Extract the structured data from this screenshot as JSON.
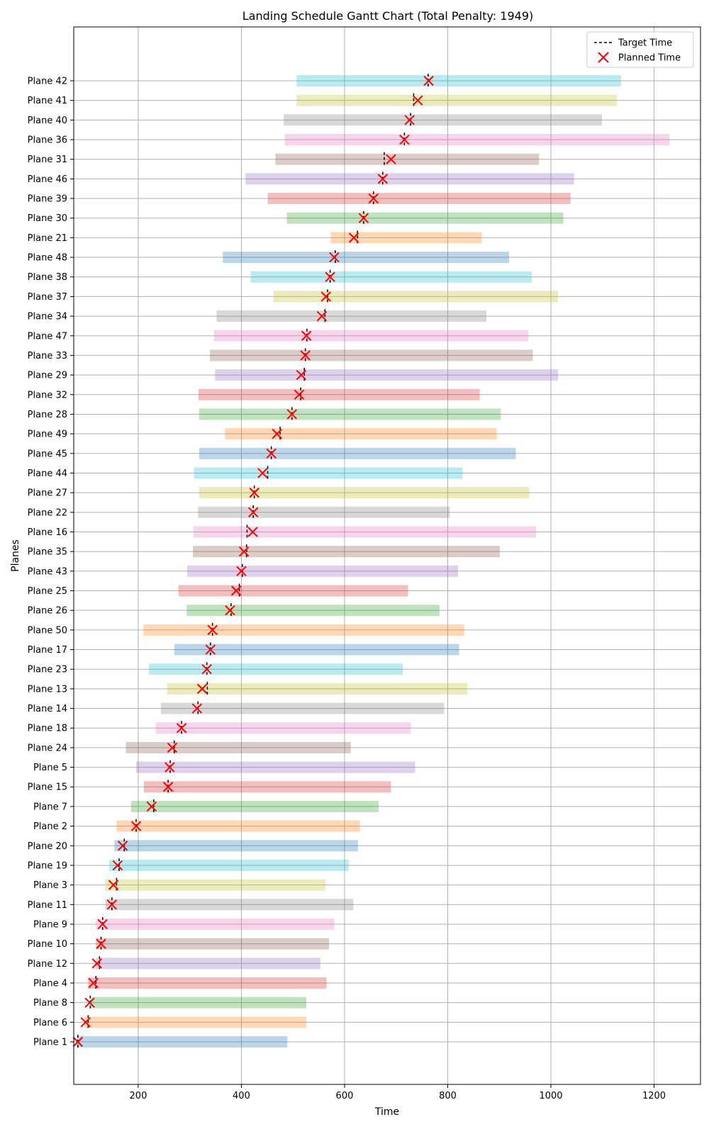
{
  "chart_data": {
    "type": "gantt",
    "title": "Landing Schedule Gantt Chart (Total Penalty: 1949)",
    "xlabel": "Time",
    "ylabel": "Planes",
    "xlim": [
      75,
      1290
    ],
    "xticks": [
      200,
      400,
      600,
      800,
      1000,
      1200
    ],
    "grid": true,
    "legend_placement": "top-right",
    "legend": {
      "target": "Target Time",
      "planned": "Planned Time"
    },
    "colors": [
      "#1f77b4",
      "#ff7f0e",
      "#2ca02c",
      "#d62728",
      "#9467bd",
      "#8c564b",
      "#e377c2",
      "#7f7f7f",
      "#bcbd22",
      "#17becf"
    ],
    "marker_color": "#ff0000",
    "planes": [
      {
        "name": "Plane 1",
        "start": 81,
        "end": 489,
        "target": 83,
        "planned": 83
      },
      {
        "name": "Plane 6",
        "start": 96,
        "end": 526,
        "target": 103,
        "planned": 98
      },
      {
        "name": "Plane 8",
        "start": 107,
        "end": 526,
        "target": 107,
        "planned": 106
      },
      {
        "name": "Plane 4",
        "start": 103,
        "end": 565,
        "target": 118,
        "planned": 113
      },
      {
        "name": "Plane 12",
        "start": 118,
        "end": 553,
        "target": 125,
        "planned": 120
      },
      {
        "name": "Plane 10",
        "start": 118,
        "end": 570,
        "target": 128,
        "planned": 128
      },
      {
        "name": "Plane 9",
        "start": 118,
        "end": 580,
        "target": 131,
        "planned": 131
      },
      {
        "name": "Plane 11",
        "start": 136,
        "end": 617,
        "target": 149,
        "planned": 149
      },
      {
        "name": "Plane 3",
        "start": 136,
        "end": 563,
        "target": 158,
        "planned": 152
      },
      {
        "name": "Plane 19",
        "start": 144,
        "end": 608,
        "target": 163,
        "planned": 160
      },
      {
        "name": "Plane 20",
        "start": 154,
        "end": 626,
        "target": 173,
        "planned": 170
      },
      {
        "name": "Plane 2",
        "start": 158,
        "end": 630,
        "target": 196,
        "planned": 196
      },
      {
        "name": "Plane 7",
        "start": 186,
        "end": 666,
        "target": 230,
        "planned": 226
      },
      {
        "name": "Plane 15",
        "start": 211,
        "end": 690,
        "target": 258,
        "planned": 258
      },
      {
        "name": "Plane 5",
        "start": 196,
        "end": 737,
        "target": 262,
        "planned": 261
      },
      {
        "name": "Plane 24",
        "start": 176,
        "end": 612,
        "target": 270,
        "planned": 266
      },
      {
        "name": "Plane 18",
        "start": 234,
        "end": 728,
        "target": 284,
        "planned": 284
      },
      {
        "name": "Plane 14",
        "start": 244,
        "end": 793,
        "target": 316,
        "planned": 314
      },
      {
        "name": "Plane 13",
        "start": 256,
        "end": 838,
        "target": 334,
        "planned": 324
      },
      {
        "name": "Plane 23",
        "start": 221,
        "end": 713,
        "target": 333,
        "planned": 333
      },
      {
        "name": "Plane 17",
        "start": 270,
        "end": 822,
        "target": 340,
        "planned": 340
      },
      {
        "name": "Plane 50",
        "start": 210,
        "end": 832,
        "target": 344,
        "planned": 344
      },
      {
        "name": "Plane 26",
        "start": 294,
        "end": 784,
        "target": 380,
        "planned": 378
      },
      {
        "name": "Plane 25",
        "start": 278,
        "end": 723,
        "target": 396,
        "planned": 390
      },
      {
        "name": "Plane 43",
        "start": 295,
        "end": 820,
        "target": 402,
        "planned": 400
      },
      {
        "name": "Plane 35",
        "start": 306,
        "end": 901,
        "target": 410,
        "planned": 405
      },
      {
        "name": "Plane 16",
        "start": 307,
        "end": 971,
        "target": 411,
        "planned": 422
      },
      {
        "name": "Plane 22",
        "start": 316,
        "end": 804,
        "target": 423,
        "planned": 423
      },
      {
        "name": "Plane 27",
        "start": 318,
        "end": 958,
        "target": 425,
        "planned": 425
      },
      {
        "name": "Plane 44",
        "start": 308,
        "end": 829,
        "target": 451,
        "planned": 441
      },
      {
        "name": "Plane 45",
        "start": 318,
        "end": 932,
        "target": 458,
        "planned": 458
      },
      {
        "name": "Plane 49",
        "start": 368,
        "end": 895,
        "target": 475,
        "planned": 469
      },
      {
        "name": "Plane 28",
        "start": 318,
        "end": 903,
        "target": 498,
        "planned": 498
      },
      {
        "name": "Plane 32",
        "start": 317,
        "end": 862,
        "target": 515,
        "planned": 512
      },
      {
        "name": "Plane 29",
        "start": 349,
        "end": 1014,
        "target": 522,
        "planned": 516
      },
      {
        "name": "Plane 33",
        "start": 339,
        "end": 965,
        "target": 524,
        "planned": 524
      },
      {
        "name": "Plane 47",
        "start": 347,
        "end": 956,
        "target": 527,
        "planned": 526
      },
      {
        "name": "Plane 34",
        "start": 352,
        "end": 875,
        "target": 562,
        "planned": 556
      },
      {
        "name": "Plane 37",
        "start": 462,
        "end": 1014,
        "target": 567,
        "planned": 564
      },
      {
        "name": "Plane 38",
        "start": 418,
        "end": 963,
        "target": 572,
        "planned": 572
      },
      {
        "name": "Plane 48",
        "start": 364,
        "end": 919,
        "target": 582,
        "planned": 580
      },
      {
        "name": "Plane 21",
        "start": 573,
        "end": 866,
        "target": 625,
        "planned": 618
      },
      {
        "name": "Plane 30",
        "start": 488,
        "end": 1024,
        "target": 637,
        "planned": 637
      },
      {
        "name": "Plane 39",
        "start": 451,
        "end": 1038,
        "target": 656,
        "planned": 656
      },
      {
        "name": "Plane 46",
        "start": 408,
        "end": 1045,
        "target": 674,
        "planned": 674
      },
      {
        "name": "Plane 31",
        "start": 466,
        "end": 977,
        "target": 677,
        "planned": 690
      },
      {
        "name": "Plane 36",
        "start": 484,
        "end": 1230,
        "target": 716,
        "planned": 716
      },
      {
        "name": "Plane 40",
        "start": 482,
        "end": 1099,
        "target": 728,
        "planned": 726
      },
      {
        "name": "Plane 41",
        "start": 507,
        "end": 1128,
        "target": 734,
        "planned": 742
      },
      {
        "name": "Plane 42",
        "start": 507,
        "end": 1136,
        "target": 762,
        "planned": 763
      }
    ]
  }
}
